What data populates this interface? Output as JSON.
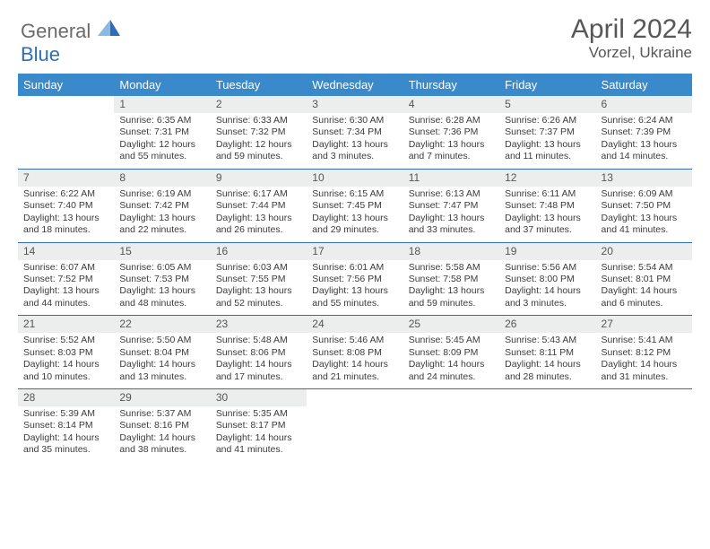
{
  "header": {
    "logo_text_1": "General",
    "logo_text_2": "Blue",
    "month": "April 2024",
    "location": "Vorzel, Ukraine"
  },
  "colors": {
    "header_bg": "#3a89ca",
    "rule": "#2f6db9",
    "daynum_bg": "#eceded",
    "text": "#3b3b3b",
    "title_text": "#575757"
  },
  "days_of_week": [
    "Sunday",
    "Monday",
    "Tuesday",
    "Wednesday",
    "Thursday",
    "Friday",
    "Saturday"
  ],
  "weeks": [
    [
      {
        "num": "",
        "lines": []
      },
      {
        "num": "1",
        "lines": [
          "Sunrise: 6:35 AM",
          "Sunset: 7:31 PM",
          "Daylight: 12 hours",
          "and 55 minutes."
        ]
      },
      {
        "num": "2",
        "lines": [
          "Sunrise: 6:33 AM",
          "Sunset: 7:32 PM",
          "Daylight: 12 hours",
          "and 59 minutes."
        ]
      },
      {
        "num": "3",
        "lines": [
          "Sunrise: 6:30 AM",
          "Sunset: 7:34 PM",
          "Daylight: 13 hours",
          "and 3 minutes."
        ]
      },
      {
        "num": "4",
        "lines": [
          "Sunrise: 6:28 AM",
          "Sunset: 7:36 PM",
          "Daylight: 13 hours",
          "and 7 minutes."
        ]
      },
      {
        "num": "5",
        "lines": [
          "Sunrise: 6:26 AM",
          "Sunset: 7:37 PM",
          "Daylight: 13 hours",
          "and 11 minutes."
        ]
      },
      {
        "num": "6",
        "lines": [
          "Sunrise: 6:24 AM",
          "Sunset: 7:39 PM",
          "Daylight: 13 hours",
          "and 14 minutes."
        ]
      }
    ],
    [
      {
        "num": "7",
        "lines": [
          "Sunrise: 6:22 AM",
          "Sunset: 7:40 PM",
          "Daylight: 13 hours",
          "and 18 minutes."
        ]
      },
      {
        "num": "8",
        "lines": [
          "Sunrise: 6:19 AM",
          "Sunset: 7:42 PM",
          "Daylight: 13 hours",
          "and 22 minutes."
        ]
      },
      {
        "num": "9",
        "lines": [
          "Sunrise: 6:17 AM",
          "Sunset: 7:44 PM",
          "Daylight: 13 hours",
          "and 26 minutes."
        ]
      },
      {
        "num": "10",
        "lines": [
          "Sunrise: 6:15 AM",
          "Sunset: 7:45 PM",
          "Daylight: 13 hours",
          "and 29 minutes."
        ]
      },
      {
        "num": "11",
        "lines": [
          "Sunrise: 6:13 AM",
          "Sunset: 7:47 PM",
          "Daylight: 13 hours",
          "and 33 minutes."
        ]
      },
      {
        "num": "12",
        "lines": [
          "Sunrise: 6:11 AM",
          "Sunset: 7:48 PM",
          "Daylight: 13 hours",
          "and 37 minutes."
        ]
      },
      {
        "num": "13",
        "lines": [
          "Sunrise: 6:09 AM",
          "Sunset: 7:50 PM",
          "Daylight: 13 hours",
          "and 41 minutes."
        ]
      }
    ],
    [
      {
        "num": "14",
        "lines": [
          "Sunrise: 6:07 AM",
          "Sunset: 7:52 PM",
          "Daylight: 13 hours",
          "and 44 minutes."
        ]
      },
      {
        "num": "15",
        "lines": [
          "Sunrise: 6:05 AM",
          "Sunset: 7:53 PM",
          "Daylight: 13 hours",
          "and 48 minutes."
        ]
      },
      {
        "num": "16",
        "lines": [
          "Sunrise: 6:03 AM",
          "Sunset: 7:55 PM",
          "Daylight: 13 hours",
          "and 52 minutes."
        ]
      },
      {
        "num": "17",
        "lines": [
          "Sunrise: 6:01 AM",
          "Sunset: 7:56 PM",
          "Daylight: 13 hours",
          "and 55 minutes."
        ]
      },
      {
        "num": "18",
        "lines": [
          "Sunrise: 5:58 AM",
          "Sunset: 7:58 PM",
          "Daylight: 13 hours",
          "and 59 minutes."
        ]
      },
      {
        "num": "19",
        "lines": [
          "Sunrise: 5:56 AM",
          "Sunset: 8:00 PM",
          "Daylight: 14 hours",
          "and 3 minutes."
        ]
      },
      {
        "num": "20",
        "lines": [
          "Sunrise: 5:54 AM",
          "Sunset: 8:01 PM",
          "Daylight: 14 hours",
          "and 6 minutes."
        ]
      }
    ],
    [
      {
        "num": "21",
        "lines": [
          "Sunrise: 5:52 AM",
          "Sunset: 8:03 PM",
          "Daylight: 14 hours",
          "and 10 minutes."
        ]
      },
      {
        "num": "22",
        "lines": [
          "Sunrise: 5:50 AM",
          "Sunset: 8:04 PM",
          "Daylight: 14 hours",
          "and 13 minutes."
        ]
      },
      {
        "num": "23",
        "lines": [
          "Sunrise: 5:48 AM",
          "Sunset: 8:06 PM",
          "Daylight: 14 hours",
          "and 17 minutes."
        ]
      },
      {
        "num": "24",
        "lines": [
          "Sunrise: 5:46 AM",
          "Sunset: 8:08 PM",
          "Daylight: 14 hours",
          "and 21 minutes."
        ]
      },
      {
        "num": "25",
        "lines": [
          "Sunrise: 5:45 AM",
          "Sunset: 8:09 PM",
          "Daylight: 14 hours",
          "and 24 minutes."
        ]
      },
      {
        "num": "26",
        "lines": [
          "Sunrise: 5:43 AM",
          "Sunset: 8:11 PM",
          "Daylight: 14 hours",
          "and 28 minutes."
        ]
      },
      {
        "num": "27",
        "lines": [
          "Sunrise: 5:41 AM",
          "Sunset: 8:12 PM",
          "Daylight: 14 hours",
          "and 31 minutes."
        ]
      }
    ],
    [
      {
        "num": "28",
        "lines": [
          "Sunrise: 5:39 AM",
          "Sunset: 8:14 PM",
          "Daylight: 14 hours",
          "and 35 minutes."
        ]
      },
      {
        "num": "29",
        "lines": [
          "Sunrise: 5:37 AM",
          "Sunset: 8:16 PM",
          "Daylight: 14 hours",
          "and 38 minutes."
        ]
      },
      {
        "num": "30",
        "lines": [
          "Sunrise: 5:35 AM",
          "Sunset: 8:17 PM",
          "Daylight: 14 hours",
          "and 41 minutes."
        ]
      },
      {
        "num": "",
        "lines": []
      },
      {
        "num": "",
        "lines": []
      },
      {
        "num": "",
        "lines": []
      },
      {
        "num": "",
        "lines": []
      }
    ]
  ]
}
